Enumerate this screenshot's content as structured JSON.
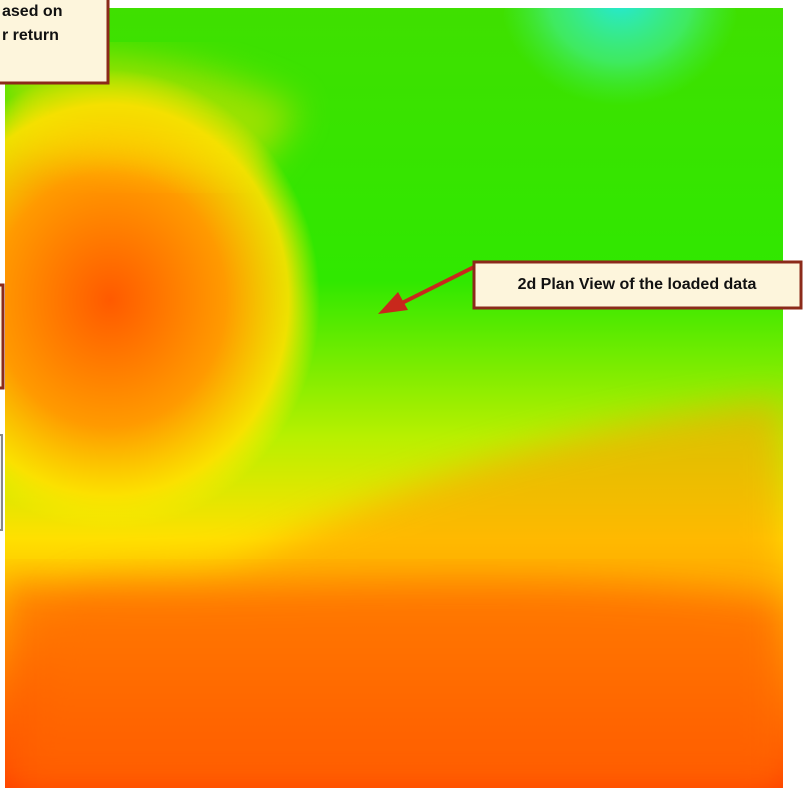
{
  "callouts": [
    {
      "lines": [
        "ased on",
        "r return"
      ]
    },
    {
      "text": "2d Plan View of the loaded data"
    }
  ]
}
